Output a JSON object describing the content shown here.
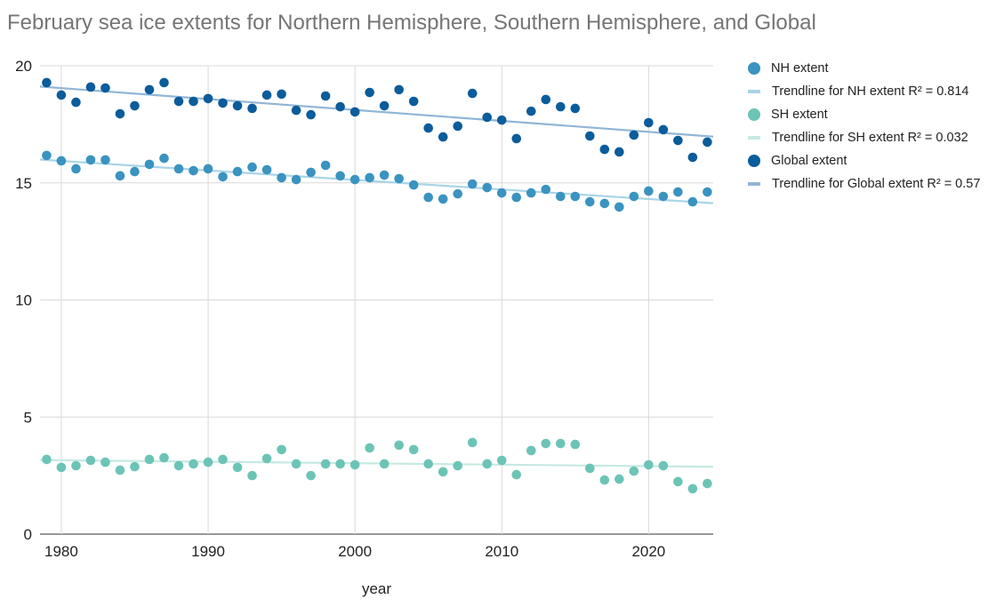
{
  "chart_data": {
    "type": "scatter",
    "title": "February sea ice extents for Northern Hemisphere, Southern Hemisphere, and Global",
    "xlabel": "year",
    "ylabel": "",
    "xlim": [
      1978.55,
      2024.4
    ],
    "ylim": [
      0,
      20
    ],
    "x_ticks": [
      1980,
      1990,
      2000,
      2010,
      2020
    ],
    "y_ticks": [
      0,
      5,
      10,
      15,
      20
    ],
    "grid": true,
    "legend_position": "right",
    "x": [
      1979,
      1980,
      1981,
      1982,
      1983,
      1984,
      1985,
      1986,
      1987,
      1988,
      1989,
      1990,
      1991,
      1992,
      1993,
      1994,
      1995,
      1996,
      1997,
      1998,
      1999,
      2000,
      2001,
      2002,
      2003,
      2004,
      2005,
      2006,
      2007,
      2008,
      2009,
      2010,
      2011,
      2012,
      2013,
      2014,
      2015,
      2016,
      2017,
      2018,
      2019,
      2020,
      2021,
      2022,
      2023,
      2024
    ],
    "series": [
      {
        "name": "NH extent",
        "color": "#3a93c0",
        "trend_color": "#a9d4e8",
        "trend_label": "Trendline for NH extent R² = 0.814",
        "values": [
          16.17,
          15.94,
          15.6,
          15.98,
          15.98,
          15.3,
          15.48,
          15.79,
          16.05,
          15.6,
          15.52,
          15.6,
          15.26,
          15.48,
          15.67,
          15.56,
          15.22,
          15.14,
          15.45,
          15.75,
          15.3,
          15.14,
          15.22,
          15.33,
          15.18,
          14.91,
          14.38,
          14.31,
          14.53,
          14.95,
          14.8,
          14.57,
          14.38,
          14.57,
          14.72,
          14.42,
          14.42,
          14.19,
          14.12,
          13.97,
          14.42,
          14.65,
          14.42,
          14.61,
          14.19,
          14.61
        ]
      },
      {
        "name": "SH extent",
        "color": "#6cc4b6",
        "trend_color": "#c6e9e2",
        "trend_label": "Trendline for SH extent R² = 0.032",
        "values": [
          3.19,
          2.85,
          2.92,
          3.15,
          3.07,
          2.73,
          2.88,
          3.19,
          3.26,
          2.92,
          3.0,
          3.07,
          3.19,
          2.85,
          2.5,
          3.23,
          3.61,
          3.0,
          2.5,
          3.0,
          3.0,
          2.96,
          3.68,
          3.0,
          3.8,
          3.61,
          3.0,
          2.66,
          2.92,
          3.91,
          3.0,
          3.15,
          2.54,
          3.57,
          3.87,
          3.87,
          3.83,
          2.81,
          2.31,
          2.35,
          2.69,
          2.96,
          2.92,
          2.24,
          1.94,
          2.16
        ]
      },
      {
        "name": "Global extent",
        "color": "#0b5c9b",
        "trend_color": "#91b6d6",
        "trend_label": "Trendline for Global extent R² = 0.57",
        "values": [
          19.28,
          18.75,
          18.44,
          19.09,
          19.05,
          17.95,
          18.29,
          18.98,
          19.28,
          18.48,
          18.48,
          18.6,
          18.41,
          18.29,
          18.18,
          18.75,
          18.79,
          18.1,
          17.91,
          18.71,
          18.25,
          18.03,
          18.86,
          18.29,
          18.98,
          18.48,
          17.34,
          16.96,
          17.42,
          18.82,
          17.8,
          17.68,
          16.89,
          18.06,
          18.56,
          18.25,
          18.18,
          17.0,
          16.43,
          16.32,
          17.04,
          17.57,
          17.27,
          16.81,
          16.09,
          16.74
        ]
      }
    ]
  }
}
